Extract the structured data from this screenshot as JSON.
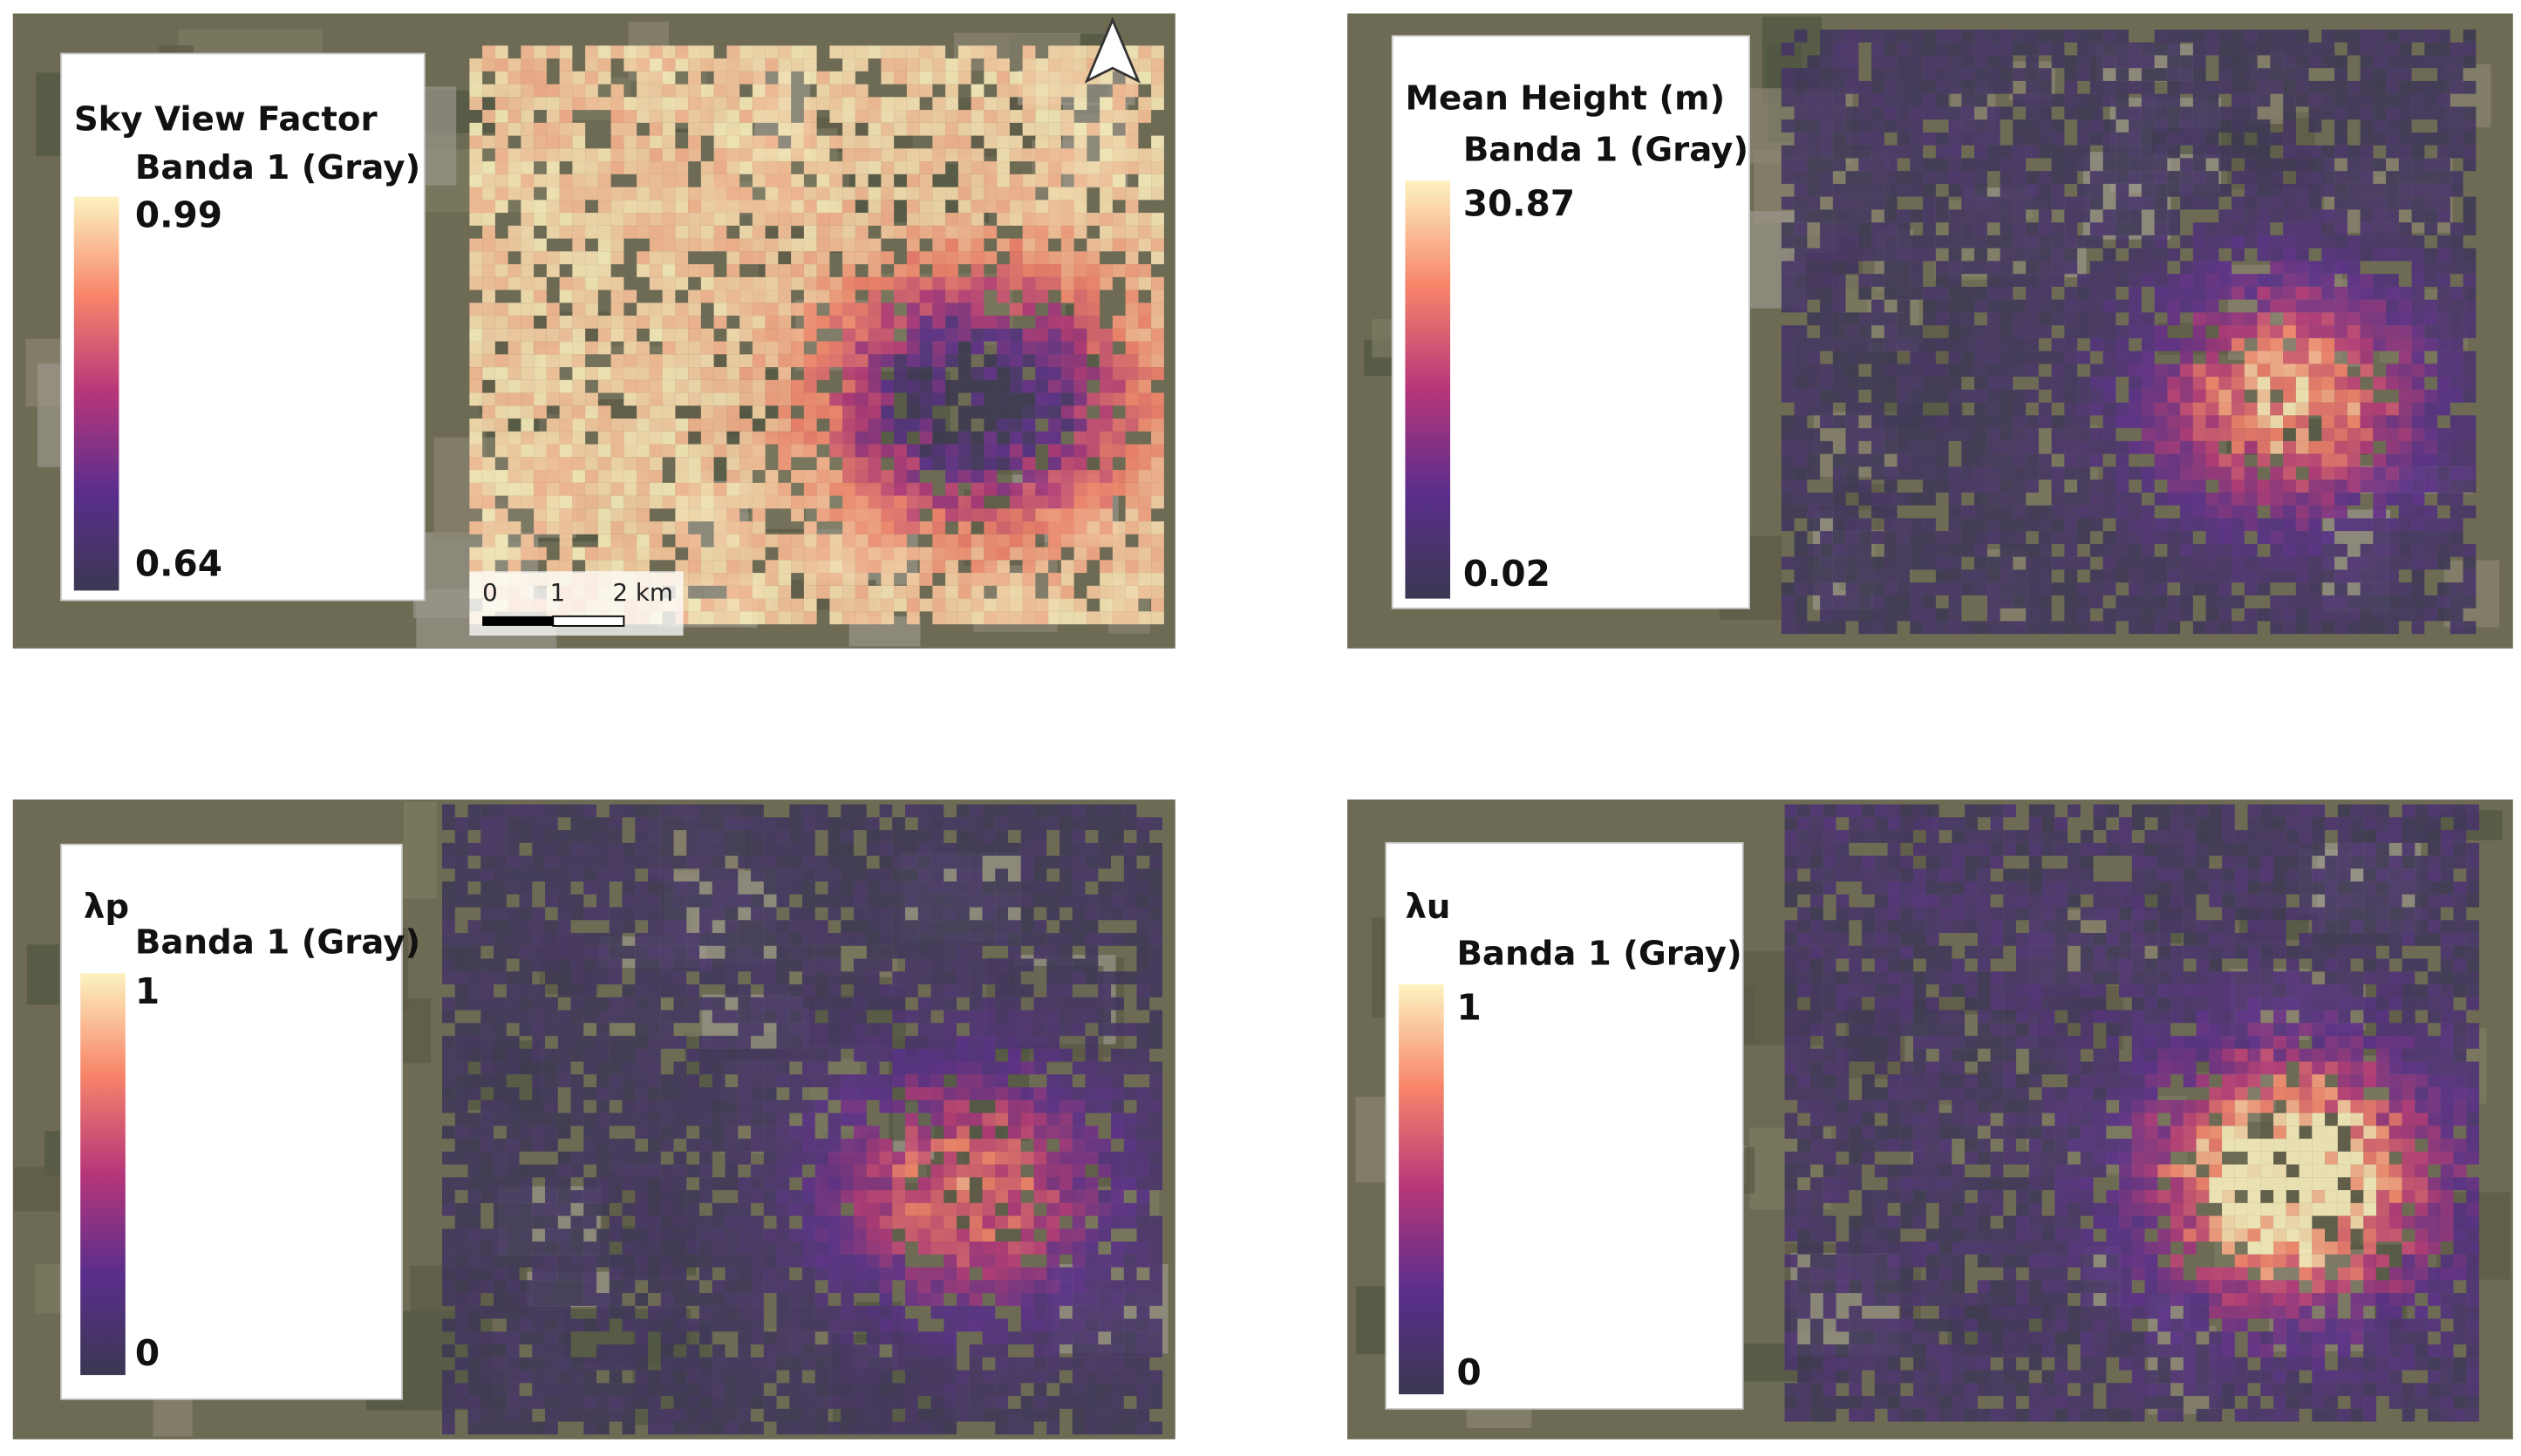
{
  "panels": [
    {
      "title": "Sky View Factor",
      "subtitle": "Banda 1 (Gray)",
      "max_label": "0.99",
      "min_label": "0.64"
    },
    {
      "title": "Mean Height (m)",
      "subtitle": "Banda 1 (Gray)",
      "max_label": "30.87",
      "min_label": "0.02"
    },
    {
      "title": "λp",
      "subtitle": "Banda 1 (Gray)",
      "max_label": "1",
      "min_label": "0"
    },
    {
      "title": "λu",
      "subtitle": "Banda 1 (Gray)",
      "max_label": "1",
      "min_label": "0"
    }
  ],
  "scale_bar": {
    "labels": [
      "0",
      "1",
      "2 km"
    ]
  }
}
